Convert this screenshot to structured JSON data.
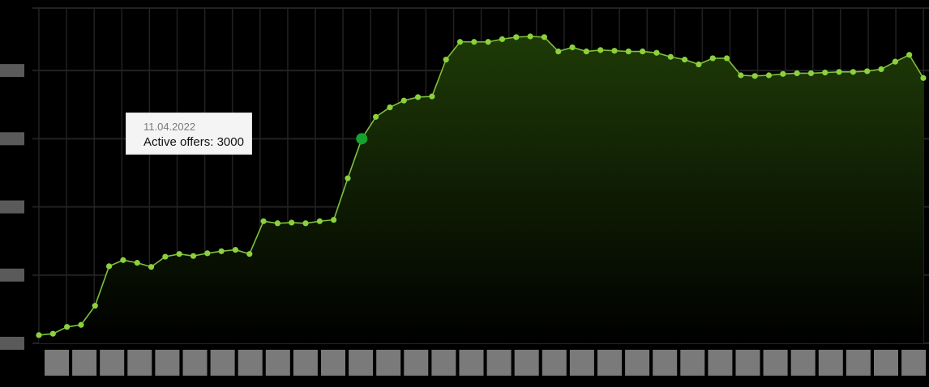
{
  "chart_data": {
    "type": "area",
    "title": "",
    "xlabel": "",
    "ylabel": "",
    "x_count": 64,
    "ylim": [
      0,
      4500
    ],
    "yticks": [
      0,
      1000,
      2000,
      3000,
      4000
    ],
    "ytick_labels": [
      "",
      "",
      "",
      "",
      ""
    ],
    "series": [
      {
        "values": [
          120,
          140,
          240,
          270,
          550,
          1130,
          1220,
          1180,
          1120,
          1270,
          1310,
          1280,
          1320,
          1350,
          1370,
          1310,
          1790,
          1760,
          1770,
          1760,
          1790,
          1810,
          2420,
          3000,
          3320,
          3460,
          3560,
          3610,
          3620,
          4160,
          4420,
          4420,
          4420,
          4460,
          4490,
          4500,
          4490,
          4280,
          4340,
          4280,
          4300,
          4290,
          4280,
          4280,
          4260,
          4200,
          4160,
          4090,
          4180,
          4180,
          3930,
          3920,
          3930,
          3950,
          3960,
          3960,
          3970,
          3980,
          3980,
          3990,
          4020,
          4130,
          4230,
          3890
        ]
      }
    ],
    "colors": {
      "line": "#7ec13a",
      "point": "#8bd13c",
      "active": "#16a130",
      "fill_top": "#1e3a07",
      "grid": "#222222"
    },
    "legend": "none",
    "grid": true,
    "tooltip": {
      "date": "11.04.2022",
      "label": "Active offers: 3000",
      "index": 23
    }
  }
}
